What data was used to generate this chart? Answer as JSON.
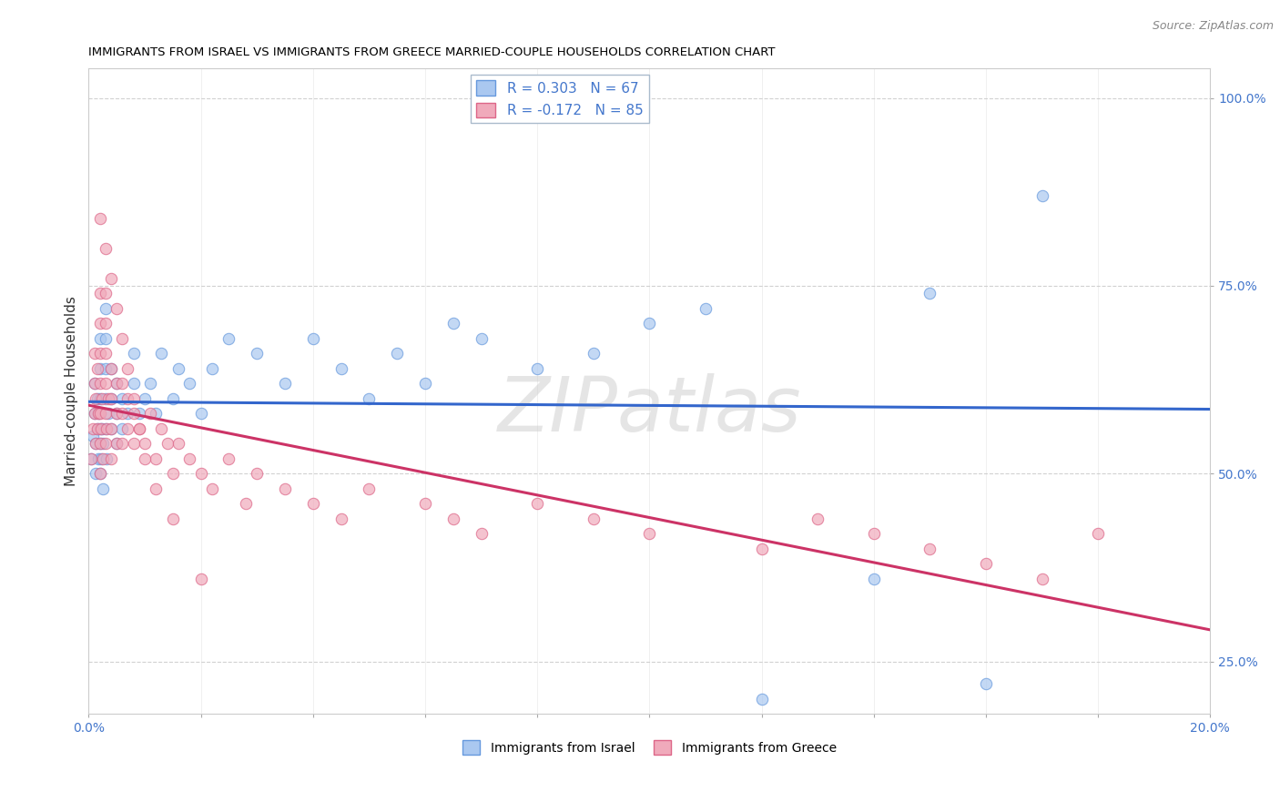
{
  "title": "IMMIGRANTS FROM ISRAEL VS IMMIGRANTS FROM GREECE MARRIED-COUPLE HOUSEHOLDS CORRELATION CHART",
  "source": "Source: ZipAtlas.com",
  "ylabel": "Married-couple Households",
  "xlim": [
    0.0,
    0.2
  ],
  "ylim": [
    0.18,
    1.04
  ],
  "xticks": [
    0.0,
    0.02,
    0.04,
    0.06,
    0.08,
    0.1,
    0.12,
    0.14,
    0.16,
    0.18,
    0.2
  ],
  "yticks": [
    0.25,
    0.5,
    0.75,
    1.0
  ],
  "israel_fill": "#aac8f0",
  "israel_edge": "#6699dd",
  "greece_fill": "#f0aabb",
  "greece_edge": "#dd6688",
  "trend_israel": "#3366cc",
  "trend_greece": "#cc3366",
  "R_israel": 0.303,
  "N_israel": 67,
  "R_greece": -0.172,
  "N_greece": 85,
  "legend_label_israel": "R = 0.303   N = 67",
  "legend_label_greece": "R = -0.172   N = 85",
  "bottom_label_israel": "Immigrants from Israel",
  "bottom_label_greece": "Immigrants from Greece",
  "watermark_text": "ZIPatlas",
  "grid_color": "#cccccc",
  "bg_color": "#ffffff",
  "tick_color": "#4477cc",
  "israel_x": [
    0.0005,
    0.0008,
    0.001,
    0.001,
    0.0012,
    0.0013,
    0.0015,
    0.0015,
    0.0017,
    0.0018,
    0.002,
    0.002,
    0.002,
    0.002,
    0.002,
    0.002,
    0.0022,
    0.0023,
    0.0025,
    0.0025,
    0.003,
    0.003,
    0.003,
    0.003,
    0.003,
    0.0032,
    0.0035,
    0.004,
    0.004,
    0.004,
    0.005,
    0.005,
    0.005,
    0.006,
    0.006,
    0.007,
    0.008,
    0.008,
    0.009,
    0.01,
    0.011,
    0.012,
    0.013,
    0.015,
    0.016,
    0.018,
    0.02,
    0.022,
    0.025,
    0.03,
    0.035,
    0.04,
    0.045,
    0.05,
    0.055,
    0.06,
    0.065,
    0.07,
    0.08,
    0.09,
    0.1,
    0.11,
    0.12,
    0.14,
    0.15,
    0.16,
    0.17
  ],
  "israel_y": [
    0.52,
    0.55,
    0.58,
    0.62,
    0.54,
    0.5,
    0.56,
    0.6,
    0.52,
    0.58,
    0.5,
    0.54,
    0.56,
    0.6,
    0.64,
    0.68,
    0.52,
    0.56,
    0.48,
    0.54,
    0.56,
    0.6,
    0.64,
    0.68,
    0.72,
    0.52,
    0.58,
    0.56,
    0.6,
    0.64,
    0.54,
    0.58,
    0.62,
    0.56,
    0.6,
    0.58,
    0.62,
    0.66,
    0.58,
    0.6,
    0.62,
    0.58,
    0.66,
    0.6,
    0.64,
    0.62,
    0.58,
    0.64,
    0.68,
    0.66,
    0.62,
    0.68,
    0.64,
    0.6,
    0.66,
    0.62,
    0.7,
    0.68,
    0.64,
    0.66,
    0.7,
    0.72,
    0.2,
    0.36,
    0.74,
    0.22,
    0.87
  ],
  "greece_x": [
    0.0005,
    0.0007,
    0.001,
    0.001,
    0.001,
    0.0012,
    0.0013,
    0.0015,
    0.0016,
    0.0018,
    0.002,
    0.002,
    0.002,
    0.002,
    0.002,
    0.002,
    0.002,
    0.0022,
    0.0023,
    0.0025,
    0.003,
    0.003,
    0.003,
    0.003,
    0.003,
    0.003,
    0.0032,
    0.0035,
    0.004,
    0.004,
    0.004,
    0.004,
    0.005,
    0.005,
    0.005,
    0.006,
    0.006,
    0.006,
    0.007,
    0.007,
    0.008,
    0.008,
    0.009,
    0.01,
    0.011,
    0.012,
    0.013,
    0.014,
    0.015,
    0.016,
    0.018,
    0.02,
    0.022,
    0.025,
    0.028,
    0.03,
    0.035,
    0.04,
    0.045,
    0.05,
    0.06,
    0.065,
    0.07,
    0.08,
    0.09,
    0.1,
    0.12,
    0.13,
    0.14,
    0.15,
    0.16,
    0.17,
    0.18,
    0.002,
    0.003,
    0.004,
    0.005,
    0.006,
    0.007,
    0.008,
    0.009,
    0.01,
    0.012,
    0.015,
    0.02
  ],
  "greece_y": [
    0.52,
    0.56,
    0.58,
    0.62,
    0.66,
    0.54,
    0.6,
    0.56,
    0.64,
    0.58,
    0.5,
    0.54,
    0.58,
    0.62,
    0.66,
    0.7,
    0.74,
    0.56,
    0.6,
    0.52,
    0.54,
    0.58,
    0.62,
    0.66,
    0.7,
    0.74,
    0.56,
    0.6,
    0.52,
    0.56,
    0.6,
    0.64,
    0.54,
    0.58,
    0.62,
    0.54,
    0.58,
    0.62,
    0.56,
    0.6,
    0.54,
    0.58,
    0.56,
    0.54,
    0.58,
    0.52,
    0.56,
    0.54,
    0.5,
    0.54,
    0.52,
    0.5,
    0.48,
    0.52,
    0.46,
    0.5,
    0.48,
    0.46,
    0.44,
    0.48,
    0.46,
    0.44,
    0.42,
    0.46,
    0.44,
    0.42,
    0.4,
    0.44,
    0.42,
    0.4,
    0.38,
    0.36,
    0.42,
    0.84,
    0.8,
    0.76,
    0.72,
    0.68,
    0.64,
    0.6,
    0.56,
    0.52,
    0.48,
    0.44,
    0.36
  ]
}
